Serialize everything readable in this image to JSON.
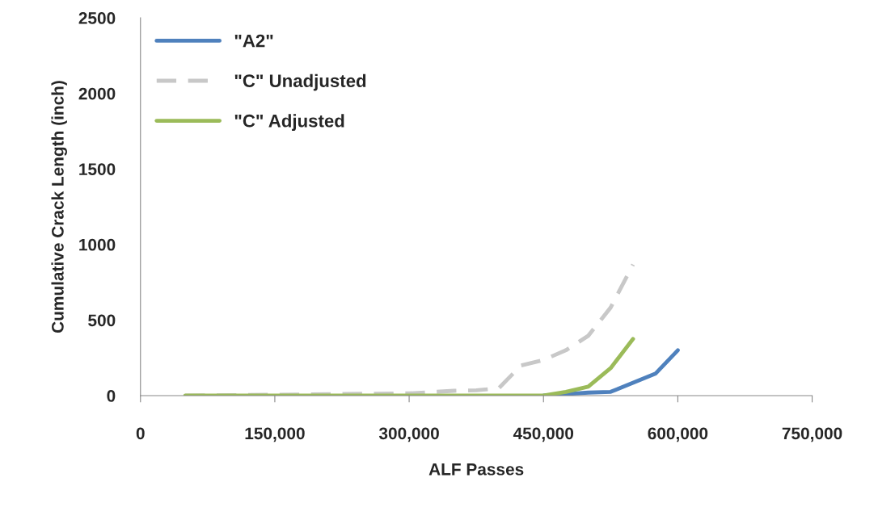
{
  "chart_data": {
    "type": "line",
    "xlabel": "ALF Passes",
    "ylabel": "Cumulative Crack Length (inch)",
    "series": [
      {
        "name": "\"A2\"",
        "color": "#4f81bd",
        "line_style": "solid",
        "x": [
          450000,
          475000,
          500000,
          525000,
          575000,
          600000
        ],
        "values": [
          0,
          10,
          20,
          25,
          145,
          300
        ]
      },
      {
        "name": "\"C\" Unadjusted",
        "color": "#c8c8c8",
        "line_style": "dashed",
        "x": [
          50000,
          300000,
          350000,
          375000,
          400000,
          425000,
          450000,
          475000,
          500000,
          525000,
          550000
        ],
        "values": [
          0,
          15,
          32,
          35,
          48,
          200,
          236,
          300,
          396,
          583,
          867
        ]
      },
      {
        "name": "\"C\" Adjusted",
        "color": "#9bbb59",
        "line_style": "solid",
        "x": [
          50000,
          450000,
          475000,
          500000,
          525000,
          550000
        ],
        "values": [
          0,
          0,
          25,
          59,
          182,
          375
        ]
      }
    ],
    "xlim": [
      0,
      750000
    ],
    "ylim": [
      0,
      2500
    ],
    "xticks": [
      0,
      {
        "value": 150000,
        "label": "150,000"
      },
      {
        "value": 300000,
        "label": "300,000"
      },
      {
        "value": 450000,
        "label": "450,000"
      },
      {
        "value": 600000,
        "label": "600,000"
      },
      {
        "value": 750000,
        "label": "750,000"
      }
    ],
    "yticks": [
      0,
      500,
      1000,
      1500,
      2000,
      2500
    ],
    "grid": false,
    "legend": "top left"
  }
}
